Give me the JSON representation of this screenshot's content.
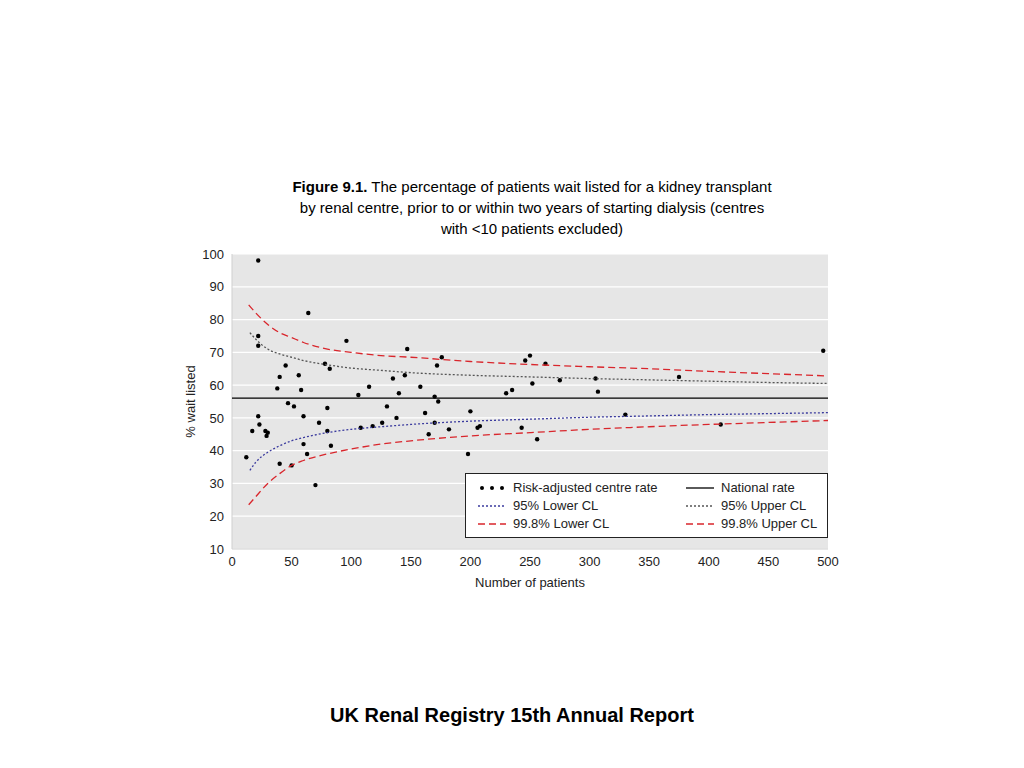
{
  "chart_data": {
    "type": "scatter",
    "figure_label": "Figure 9.1.",
    "title": "The percentage of patients wait listed for a kidney transplant by renal centre, prior to or within two years of starting dialysis (centres with <10 patients excluded)",
    "x_label": "Number of patients",
    "y_label": "% wait listed",
    "xlim": [
      0,
      500
    ],
    "xticks": [
      0,
      50,
      100,
      150,
      200,
      250,
      300,
      350,
      400,
      450,
      500
    ],
    "ylim": [
      10,
      100
    ],
    "yticks": [
      10,
      20,
      30,
      40,
      50,
      60,
      70,
      80,
      90,
      100
    ],
    "grid": true,
    "legend": "lower right",
    "footer": "UK Renal Registry 15th Annual Report",
    "series": [
      {
        "name": "Risk-adjusted centre rate",
        "type": "scatter",
        "color": "#000000",
        "marker": "circle",
        "x": [
          12,
          17,
          22,
          22,
          22,
          22,
          23,
          28,
          29,
          30,
          38,
          40,
          40,
          45,
          47,
          50,
          52,
          56,
          58,
          60,
          60,
          63,
          64,
          70,
          73,
          78,
          80,
          80,
          82,
          83,
          96,
          106,
          108,
          115,
          118,
          126,
          130,
          135,
          138,
          140,
          145,
          147,
          158,
          162,
          165,
          170,
          170,
          172,
          173,
          176,
          182,
          198,
          200,
          206,
          208,
          230,
          235,
          243,
          246,
          250,
          252,
          256,
          263,
          275,
          305,
          307,
          330,
          375,
          410,
          496
        ],
        "values": [
          38,
          46,
          98,
          75,
          72,
          50.5,
          48,
          46,
          44.5,
          45.5,
          59,
          62.5,
          36,
          66,
          54.5,
          35.5,
          53.5,
          63,
          58.5,
          42,
          50.5,
          39,
          82,
          29.5,
          48.5,
          66.5,
          53,
          46,
          65,
          41.5,
          73.5,
          57,
          47,
          59.5,
          47.5,
          48.5,
          53.5,
          62,
          50,
          57.5,
          63,
          71,
          59.5,
          51.5,
          45,
          56.5,
          48.5,
          66,
          55,
          68.5,
          46.5,
          39,
          52,
          47,
          47.5,
          57.5,
          58.5,
          47,
          67.5,
          69,
          60.5,
          43.5,
          66.5,
          61.5,
          62,
          58,
          51,
          62.5,
          48,
          70.5
        ]
      },
      {
        "name": "National rate",
        "type": "line",
        "color": "#000000",
        "line_style": "solid",
        "x": [
          0,
          500
        ],
        "values": [
          56,
          56
        ]
      },
      {
        "name": "95% Lower CL",
        "type": "line",
        "color": "#3b3b9e",
        "line_style": "dotted",
        "x": [
          15,
          20,
          30,
          40,
          50,
          60,
          80,
          100,
          125,
          150,
          200,
          250,
          300,
          350,
          400,
          450,
          500
        ],
        "values": [
          34,
          36.5,
          39.5,
          41.5,
          43,
          44,
          45.5,
          46.5,
          47.3,
          48,
          49,
          49.6,
          50.2,
          50.6,
          51,
          51.3,
          51.6
        ]
      },
      {
        "name": "95% Upper CL",
        "type": "line",
        "color": "#555555",
        "line_style": "dotted",
        "x": [
          15,
          20,
          30,
          40,
          50,
          60,
          80,
          100,
          125,
          150,
          200,
          250,
          300,
          350,
          400,
          450,
          500
        ],
        "values": [
          76,
          74,
          71,
          69.5,
          68.5,
          67.5,
          66.2,
          65.2,
          64.5,
          63.8,
          63,
          62.5,
          62,
          61.6,
          61.2,
          60.8,
          60.5
        ]
      },
      {
        "name": "99.8% Lower CL",
        "type": "line",
        "color": "#d9262c",
        "line_style": "dashed",
        "x": [
          14,
          20,
          30,
          40,
          50,
          60,
          80,
          100,
          125,
          150,
          200,
          250,
          300,
          350,
          400,
          450,
          500
        ],
        "values": [
          23.5,
          26,
          30,
          33,
          35.5,
          37,
          39,
          40.5,
          42,
          43,
          44.5,
          45.5,
          46.5,
          47.3,
          48,
          48.6,
          49.2
        ]
      },
      {
        "name": "99.8% Upper CL",
        "type": "line",
        "color": "#d9262c",
        "line_style": "dashed",
        "x": [
          14,
          20,
          30,
          40,
          50,
          60,
          80,
          100,
          125,
          150,
          200,
          250,
          300,
          350,
          400,
          450,
          500
        ],
        "values": [
          84.5,
          82,
          78.5,
          76,
          74.5,
          73,
          71,
          70,
          69,
          68.5,
          67.2,
          66.3,
          65.6,
          65,
          64.2,
          63.5,
          62.8
        ]
      }
    ]
  }
}
